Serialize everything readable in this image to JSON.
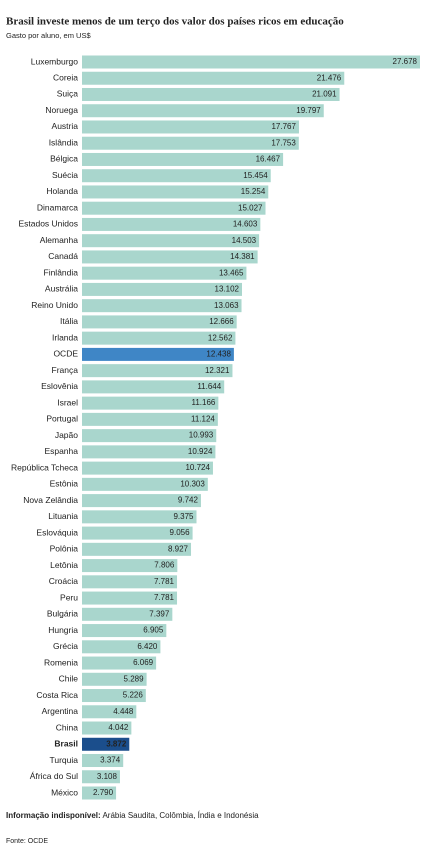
{
  "chart_data": {
    "type": "bar",
    "orientation": "horizontal",
    "title": "Brasil investe menos de um terço dos valor dos países ricos em educação",
    "subtitle": "Gasto por aluno, em US$",
    "categories": [
      "Luxemburgo",
      "Coreia",
      "Suiça",
      "Noruega",
      "Austria",
      "Islândia",
      "Bélgica",
      "Suécia",
      "Holanda",
      "Dinamarca",
      "Estados Unidos",
      "Alemanha",
      "Canadá",
      "Finlândia",
      "Austrália",
      "Reino Unido",
      "Itália",
      "Irlanda",
      "OCDE",
      "França",
      "Eslovênia",
      "Israel",
      "Portugal",
      "Japão",
      "Espanha",
      "República Tcheca",
      "Estônia",
      "Nova Zelândia",
      "Lituania",
      "Eslováquia",
      "Polônia",
      "Letônia",
      "Croácia",
      "Peru",
      "Bulgária",
      "Hungria",
      "Grécia",
      "Romenia",
      "Chile",
      "Costa Rica",
      "Argentina",
      "China",
      "Brasil",
      "Turquia",
      "África do Sul",
      "México"
    ],
    "values": [
      27678,
      21476,
      21091,
      19797,
      17767,
      17753,
      16467,
      15454,
      15254,
      15027,
      14603,
      14503,
      14381,
      13465,
      13102,
      13063,
      12666,
      12562,
      12438,
      12321,
      11644,
      11166,
      11124,
      10993,
      10924,
      10724,
      10303,
      9742,
      9375,
      9056,
      8927,
      7806,
      7781,
      7781,
      7397,
      6905,
      6420,
      6069,
      5289,
      5226,
      4448,
      4042,
      3872,
      3374,
      3108,
      2790
    ],
    "value_labels": [
      "27.678",
      "21.476",
      "21.091",
      "19.797",
      "17.767",
      "17.753",
      "16.467",
      "15.454",
      "15.254",
      "15.027",
      "14.603",
      "14.503",
      "14.381",
      "13.465",
      "13.102",
      "13.063",
      "12.666",
      "12.562",
      "12.438",
      "12.321",
      "11.644",
      "11.166",
      "11.124",
      "10.993",
      "10.924",
      "10.724",
      "10.303",
      "9.742",
      "9.375",
      "9.056",
      "8.927",
      "7.806",
      "7.781",
      "7.781",
      "7.397",
      "6.905",
      "6.420",
      "6.069",
      "5.289",
      "5.226",
      "4.448",
      "4.042",
      "3.872",
      "3.374",
      "3.108",
      "2.790"
    ],
    "color": "#a9d6cd",
    "highlight_colors": {
      "OCDE": "#3f86c6",
      "Brasil": "#1b4e8c"
    },
    "note_label": "Informação indisponível:",
    "note_text": "Arábia Saudita, Colômbia, Índia e Indonésia",
    "source": "Fonte: OCDE"
  }
}
